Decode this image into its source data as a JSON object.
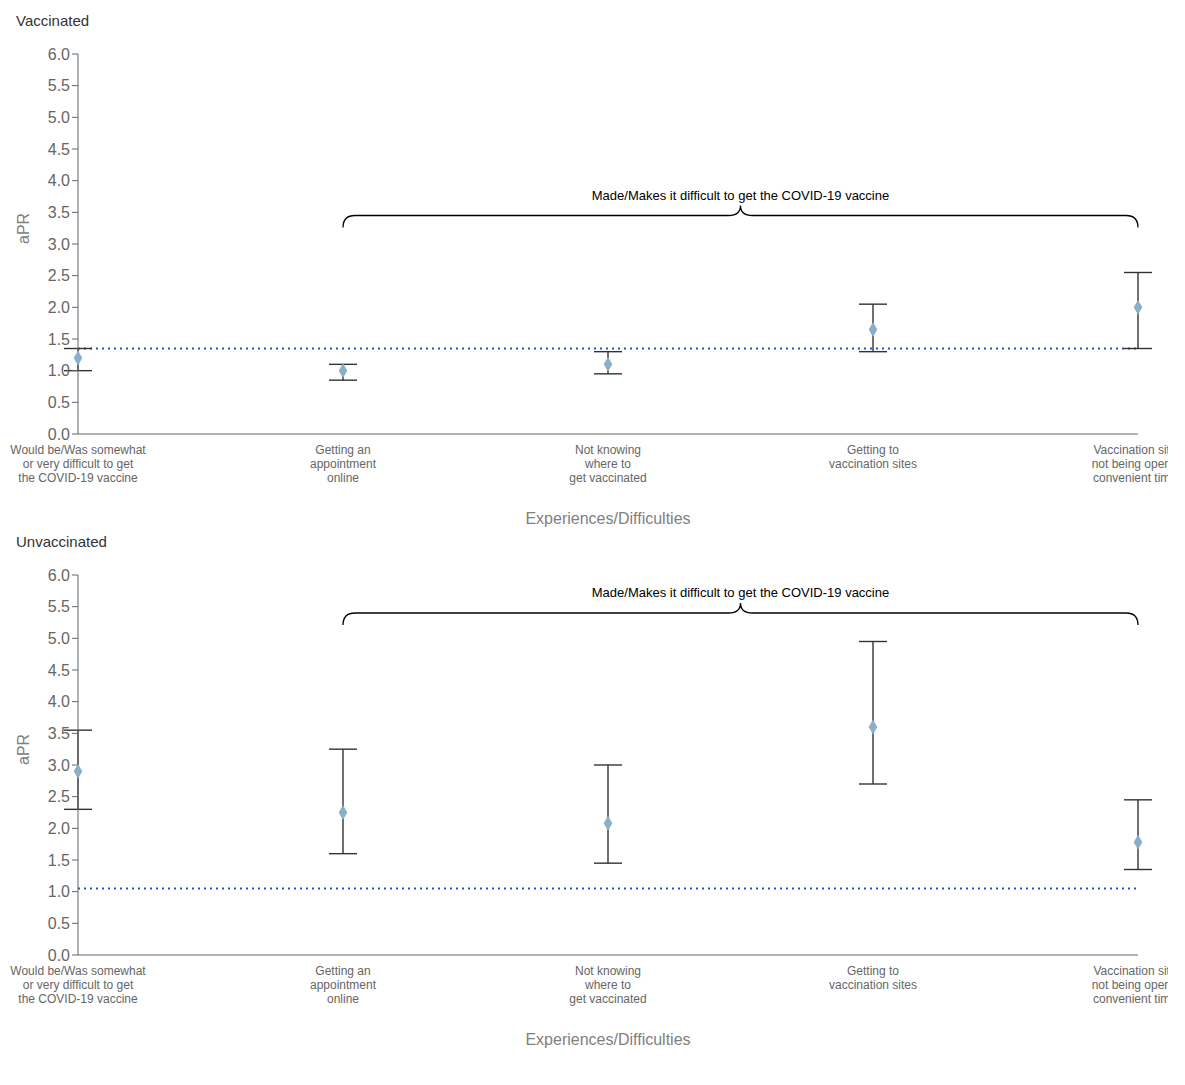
{
  "chart_data": [
    {
      "type": "scatter",
      "title": "Vaccinated",
      "categories": [
        "Would be/Was somewhat\nor very difficult to get\nthe COVID-19 vaccine",
        "Getting an\nappointment\nonline",
        "Not knowing\nwhere to\nget vaccinated",
        "Getting to\nvaccination sites",
        "Vaccination sites\nnot being open at\nconvenient times"
      ],
      "values": [
        1.2,
        1.0,
        1.1,
        1.65,
        2.0
      ],
      "ci_low": [
        1.0,
        0.85,
        0.95,
        1.3,
        1.35
      ],
      "ci_high": [
        1.35,
        1.1,
        1.3,
        2.05,
        2.55
      ],
      "color": "#8aafc8",
      "marker": "diamond",
      "ref_line": {
        "value": 1.35,
        "color": "#1455cc",
        "line_style": "dotted"
      },
      "annotation": {
        "text": "Made/Makes it difficult to get the COVID-19 vaccine",
        "x": [
          "Getting an\nappointment\nonline",
          "Vaccination sites\nnot being open at\nconvenient times"
        ],
        "y": 3.45
      },
      "xlabel": "Experiences/Difficulties",
      "ylabel": "aPR",
      "ylim": [
        0,
        6
      ],
      "yticks": [
        {
          "value": 0,
          "label": "0.0"
        },
        0.5,
        {
          "value": 1,
          "label": "1.0"
        },
        1.5,
        {
          "value": 2,
          "label": "2.0"
        },
        2.5,
        {
          "value": 3,
          "label": "3.0"
        },
        3.5,
        {
          "value": 4,
          "label": "4.0"
        },
        4.5,
        {
          "value": 5,
          "label": "5.0"
        },
        5.5,
        {
          "value": 6,
          "label": "6.0"
        }
      ],
      "grid": false
    },
    {
      "type": "scatter",
      "title": "Unvaccinated",
      "categories": [
        "Would be/Was somewhat\nor very difficult to get\nthe COVID-19 vaccine",
        "Getting an\nappointment\nonline",
        "Not knowing\nwhere to\nget vaccinated",
        "Getting to\nvaccination sites",
        "Vaccination sites\nnot being open at\nconvenient times"
      ],
      "values": [
        2.9,
        2.25,
        2.08,
        3.6,
        1.78
      ],
      "ci_low": [
        2.3,
        1.6,
        1.45,
        2.7,
        1.35
      ],
      "ci_high": [
        3.55,
        3.25,
        3.0,
        4.95,
        2.45
      ],
      "color": "#8aafc8",
      "marker": "diamond",
      "ref_line": {
        "value": 1.05,
        "color": "#1455cc",
        "line_style": "dotted"
      },
      "annotation": {
        "text": "Made/Makes it difficult to get the COVID-19 vaccine",
        "x": [
          "Getting an\nappointment\nonline",
          "Vaccination sites\nnot being open at\nconvenient times"
        ],
        "y": 5.4
      },
      "xlabel": "Experiences/Difficulties",
      "ylabel": "aPR",
      "ylim": [
        0,
        6
      ],
      "yticks": [
        {
          "value": 0,
          "label": "0.0"
        },
        0.5,
        {
          "value": 1,
          "label": "1.0"
        },
        1.5,
        {
          "value": 2,
          "label": "2.0"
        },
        2.5,
        {
          "value": 3,
          "label": "3.0"
        },
        3.5,
        {
          "value": 4,
          "label": "4.0"
        },
        4.5,
        {
          "value": 5,
          "label": "5.0"
        },
        5.5,
        {
          "value": 6,
          "label": "6.0"
        }
      ],
      "grid": false
    }
  ]
}
